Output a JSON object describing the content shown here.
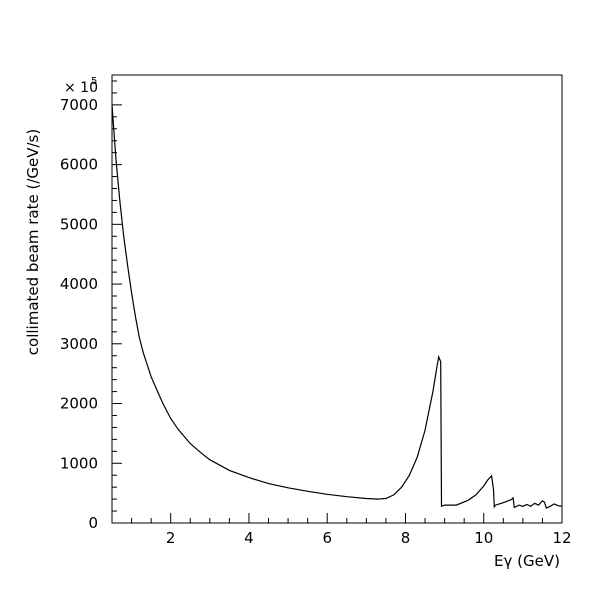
{
  "chart_data": {
    "type": "line",
    "title": "",
    "xlabel": "Eγ (GeV)",
    "ylabel": "collimated beam rate (/GeV/s)",
    "y_multiplier": "× 10",
    "y_multiplier_exp": "5",
    "xlim": [
      0.5,
      12
    ],
    "ylim": [
      0,
      7500
    ],
    "x_major_ticks": [
      2,
      4,
      6,
      8,
      10,
      12
    ],
    "y_major_ticks": [
      0,
      1000,
      2000,
      3000,
      4000,
      5000,
      6000,
      7000
    ],
    "x_tick_labels": [
      "2",
      "4",
      "6",
      "8",
      "10",
      "12"
    ],
    "y_tick_labels": [
      "0",
      "1000",
      "2000",
      "3000",
      "4000",
      "5000",
      "6000",
      "7000"
    ],
    "grid": false,
    "legend": "none",
    "series": [
      {
        "x": [
          0.5,
          0.6,
          0.7,
          0.8,
          0.9,
          1.0,
          1.1,
          1.2,
          1.3,
          1.4,
          1.5,
          1.6,
          1.8,
          2.0,
          2.2,
          2.5,
          2.8,
          3.0,
          3.5,
          4.0,
          4.5,
          5.0,
          5.5,
          6.0,
          6.5,
          7.0,
          7.3,
          7.5,
          7.7,
          7.9,
          8.1,
          8.3,
          8.5,
          8.7,
          8.8,
          8.85,
          8.9,
          8.92,
          9.0,
          9.3,
          9.6,
          9.8,
          10.0,
          10.1,
          10.2,
          10.25,
          10.27,
          10.3,
          10.5,
          10.7,
          10.75,
          10.78,
          10.9,
          11.0,
          11.1,
          11.2,
          11.3,
          11.4,
          11.5,
          11.55,
          11.6,
          11.7,
          11.8,
          11.9,
          12.0
        ],
        "y": [
          7000,
          6100,
          5400,
          4800,
          4300,
          3850,
          3450,
          3100,
          2850,
          2650,
          2450,
          2300,
          2000,
          1750,
          1560,
          1330,
          1160,
          1060,
          880,
          760,
          660,
          590,
          530,
          480,
          440,
          410,
          400,
          410,
          470,
          600,
          800,
          1100,
          1550,
          2200,
          2600,
          2780,
          2700,
          280,
          300,
          300,
          380,
          470,
          620,
          720,
          790,
          560,
          270,
          300,
          340,
          390,
          420,
          260,
          300,
          280,
          310,
          280,
          330,
          300,
          370,
          350,
          250,
          280,
          320,
          290,
          280
        ]
      }
    ]
  }
}
